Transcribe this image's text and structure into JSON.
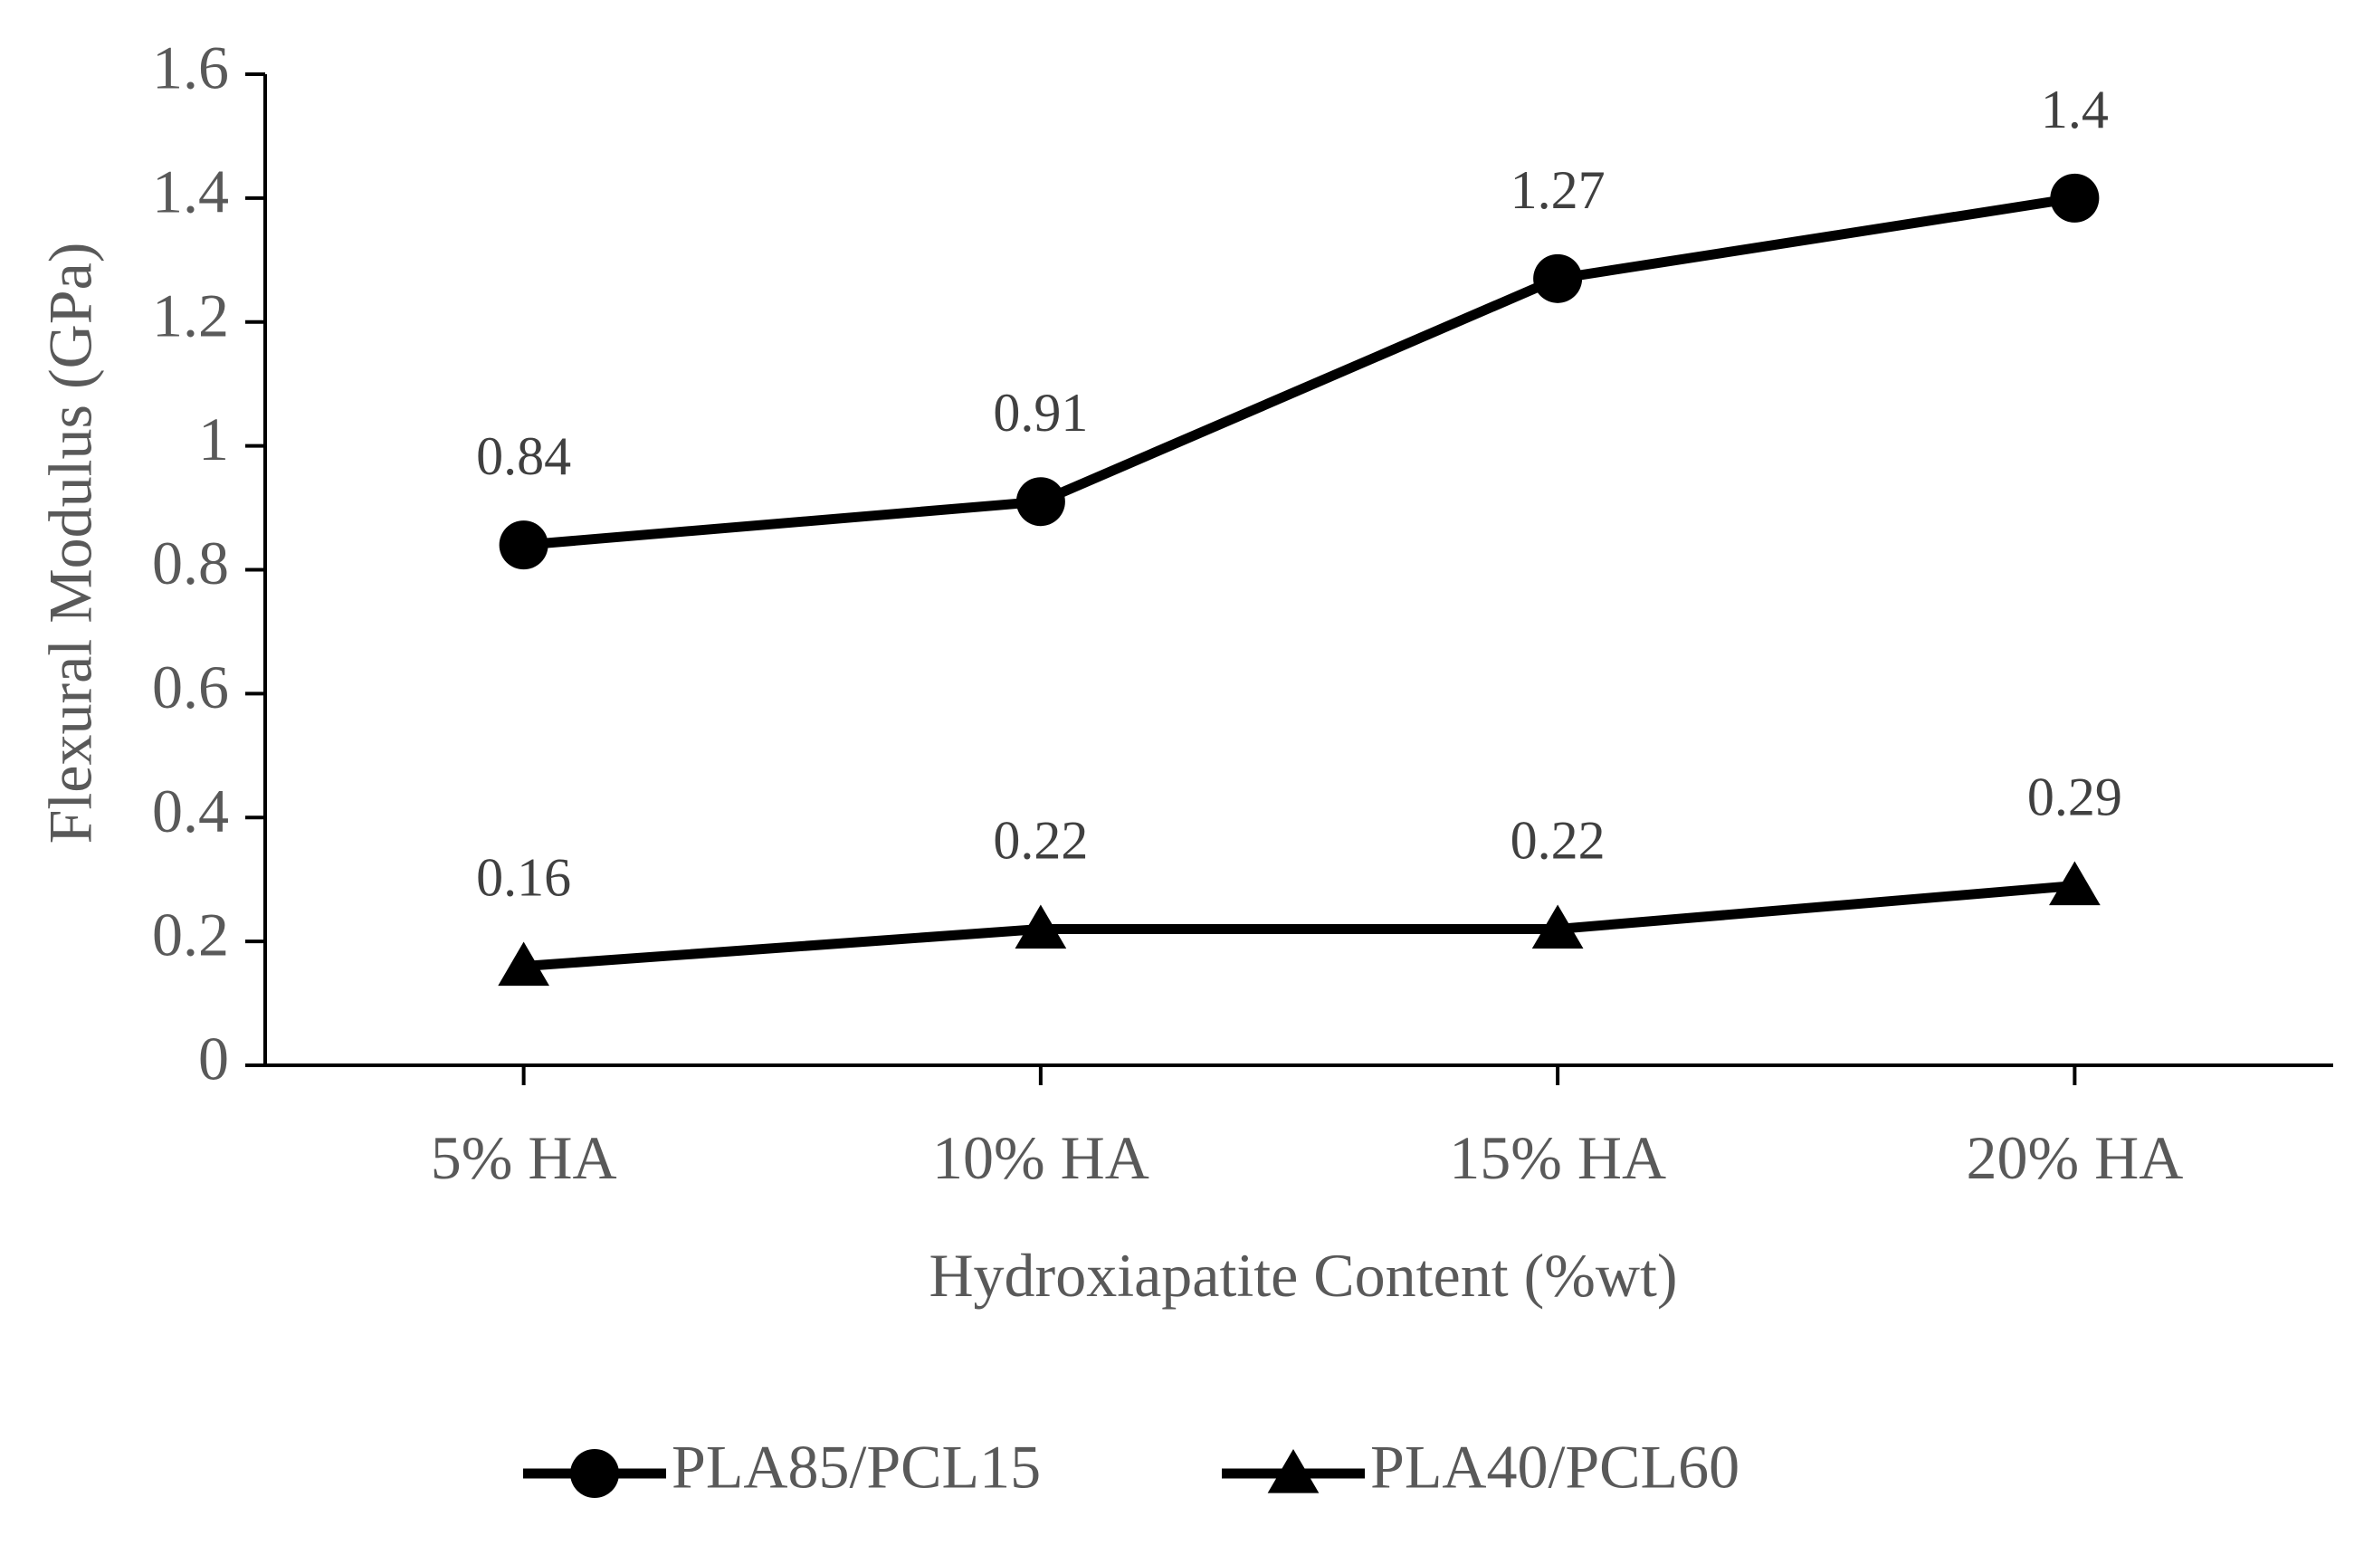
{
  "chart_data": {
    "type": "line",
    "title": "",
    "xlabel": "Hydroxiapatite Content (%wt)",
    "ylabel": "Flexural Modulus (GPa)",
    "categories": [
      "5% HA",
      "10% HA",
      "15% HA",
      "20% HA"
    ],
    "ylim": [
      0,
      1.6
    ],
    "yticks": [
      0,
      0.2,
      0.4,
      0.6,
      0.8,
      1,
      1.2,
      1.4,
      1.6
    ],
    "ytick_labels": [
      "0",
      "0.2",
      "0.4",
      "0.6",
      "0.8",
      "1",
      "1.2",
      "1.4",
      "1.6"
    ],
    "grid": false,
    "legend_position": "bottom",
    "series": [
      {
        "name": "PLA85/PCL15",
        "marker": "circle",
        "values": [
          0.84,
          0.91,
          1.27,
          1.4
        ],
        "data_labels": [
          "0.84",
          "0.91",
          "1.27",
          "1.4"
        ],
        "color": "#000000"
      },
      {
        "name": "PLA40/PCL60",
        "marker": "triangle",
        "values": [
          0.16,
          0.22,
          0.22,
          0.29
        ],
        "data_labels": [
          "0.16",
          "0.22",
          "0.22",
          "0.29"
        ],
        "color": "#000000"
      }
    ]
  },
  "colors": {
    "axis": "#000000",
    "text": "#595959",
    "data_label": "#404040"
  }
}
